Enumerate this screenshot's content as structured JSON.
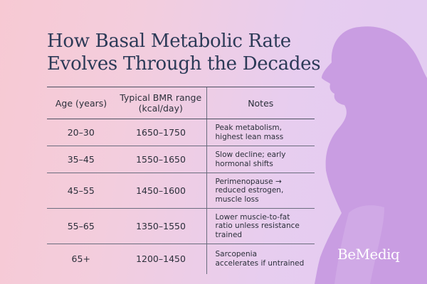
{
  "title_lines": [
    "How Basal Metabolic Rate",
    "Evolves Through the Decades"
  ],
  "chart_data": {
    "type": "table",
    "columns": [
      "Age (years)",
      "Typical BMR range\n(kcal/day)",
      "Notes"
    ],
    "rows": [
      {
        "age": "20–30",
        "range": "1650–1750",
        "note_lines": [
          "Peak metabolism,",
          "highest lean mass"
        ],
        "bmr_min": 1650,
        "bmr_max": 1750
      },
      {
        "age": "35–45",
        "range": "1550–1650",
        "note_lines": [
          "Slow decline; early",
          "hormonal shifts"
        ],
        "bmr_min": 1550,
        "bmr_max": 1650
      },
      {
        "age": "45–55",
        "range": "1450–1600",
        "note_lines": [
          "Perimenopause →",
          "reduced estrogen,",
          "muscle loss"
        ],
        "bmr_min": 1450,
        "bmr_max": 1600
      },
      {
        "age": "55–65",
        "range": "1350–1550",
        "note_lines": [
          "Lower muscie-to-fat",
          "ratio unless resistance",
          "trained"
        ],
        "bmr_min": 1350,
        "bmr_max": 1550
      },
      {
        "age": "65+",
        "range": "1200–1450",
        "note_lines": [
          "Sarcopenia",
          "accelerates if untrained"
        ],
        "bmr_min": 1200,
        "bmr_max": 1450
      }
    ]
  },
  "brand": "BeMediq",
  "colors": {
    "title": "#2c3a57",
    "silhouette": "#c79ae0",
    "text": "#2b2f3a"
  },
  "icons": {
    "silhouette": "woman-silhouette-icon"
  }
}
